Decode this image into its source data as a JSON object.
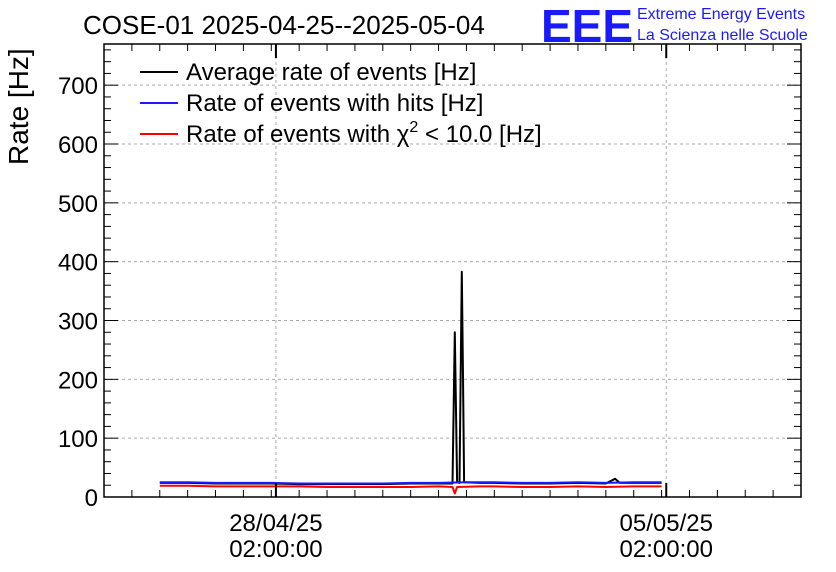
{
  "chart_data": {
    "type": "line",
    "title": "COSE-01 2025-04-25--2025-05-04",
    "ylabel": "Rate [Hz]",
    "xlabel": "",
    "ylim": [
      0,
      770
    ],
    "yticks": [
      "0",
      "100",
      "200",
      "300",
      "400",
      "500",
      "600",
      "700"
    ],
    "xlim": [
      "2025-04-25T00:00:00",
      "2025-05-07T12:00:00"
    ],
    "xticks": [
      {
        "x": "2025-04-28T02:00:00",
        "date": "28/04/25",
        "time": "02:00:00"
      },
      {
        "x": "2025-05-05T02:00:00",
        "date": "05/05/25",
        "time": "02:00:00"
      }
    ],
    "grid": true,
    "legend_position": "top-left",
    "series": [
      {
        "name": "Average rate of events [Hz]",
        "color": "#000000",
        "points": [
          [
            "2025-04-26T00:00:00",
            24
          ],
          [
            "2025-04-26T12:00:00",
            24
          ],
          [
            "2025-04-27T00:00:00",
            23
          ],
          [
            "2025-04-27T12:00:00",
            23
          ],
          [
            "2025-04-28T00:00:00",
            23
          ],
          [
            "2025-04-28T12:00:00",
            22
          ],
          [
            "2025-04-29T00:00:00",
            22
          ],
          [
            "2025-04-29T12:00:00",
            22
          ],
          [
            "2025-04-30T00:00:00",
            22
          ],
          [
            "2025-04-30T12:00:00",
            23
          ],
          [
            "2025-05-01T00:00:00",
            23
          ],
          [
            "2025-05-01T06:00:00",
            23
          ],
          [
            "2025-05-01T07:00:00",
            280
          ],
          [
            "2025-05-01T08:00:00",
            25
          ],
          [
            "2025-05-01T09:00:00",
            24
          ],
          [
            "2025-05-01T10:00:00",
            383
          ],
          [
            "2025-05-01T10:30:00",
            205
          ],
          [
            "2025-05-01T11:00:00",
            25
          ],
          [
            "2025-05-01T18:00:00",
            24
          ],
          [
            "2025-05-02T00:00:00",
            24
          ],
          [
            "2025-05-02T12:00:00",
            23
          ],
          [
            "2025-05-03T00:00:00",
            23
          ],
          [
            "2025-05-03T12:00:00",
            24
          ],
          [
            "2025-05-04T00:00:00",
            23
          ],
          [
            "2025-05-04T04:00:00",
            31
          ],
          [
            "2025-05-04T06:00:00",
            24
          ],
          [
            "2025-05-04T12:00:00",
            24
          ],
          [
            "2025-05-05T00:00:00",
            24
          ]
        ]
      },
      {
        "name": "Rate of events with hits [Hz]",
        "color": "#1a1aff",
        "points": [
          [
            "2025-04-26T00:00:00",
            25
          ],
          [
            "2025-04-26T12:00:00",
            25
          ],
          [
            "2025-04-27T00:00:00",
            24
          ],
          [
            "2025-04-27T12:00:00",
            24
          ],
          [
            "2025-04-28T00:00:00",
            24
          ],
          [
            "2025-04-28T12:00:00",
            23
          ],
          [
            "2025-04-29T00:00:00",
            23
          ],
          [
            "2025-04-29T12:00:00",
            23
          ],
          [
            "2025-04-30T00:00:00",
            23
          ],
          [
            "2025-04-30T12:00:00",
            24
          ],
          [
            "2025-05-01T00:00:00",
            24
          ],
          [
            "2025-05-01T12:00:00",
            25
          ],
          [
            "2025-05-02T00:00:00",
            25
          ],
          [
            "2025-05-02T12:00:00",
            24
          ],
          [
            "2025-05-03T00:00:00",
            24
          ],
          [
            "2025-05-03T12:00:00",
            25
          ],
          [
            "2025-05-04T00:00:00",
            24
          ],
          [
            "2025-05-04T12:00:00",
            25
          ],
          [
            "2025-05-05T00:00:00",
            25
          ]
        ]
      },
      {
        "name": "Rate of events with χ² < 10.0 [Hz]",
        "color": "#ff0000",
        "points": [
          [
            "2025-04-26T00:00:00",
            19
          ],
          [
            "2025-04-26T12:00:00",
            19
          ],
          [
            "2025-04-27T00:00:00",
            18
          ],
          [
            "2025-04-27T12:00:00",
            18
          ],
          [
            "2025-04-28T00:00:00",
            18
          ],
          [
            "2025-04-28T12:00:00",
            18
          ],
          [
            "2025-04-29T00:00:00",
            17
          ],
          [
            "2025-04-29T12:00:00",
            17
          ],
          [
            "2025-04-30T00:00:00",
            17
          ],
          [
            "2025-04-30T12:00:00",
            17
          ],
          [
            "2025-05-01T00:00:00",
            18
          ],
          [
            "2025-05-01T06:00:00",
            17
          ],
          [
            "2025-05-01T07:00:00",
            6
          ],
          [
            "2025-05-01T08:00:00",
            17
          ],
          [
            "2025-05-01T18:00:00",
            18
          ],
          [
            "2025-05-02T00:00:00",
            18
          ],
          [
            "2025-05-02T12:00:00",
            17
          ],
          [
            "2025-05-03T00:00:00",
            17
          ],
          [
            "2025-05-03T12:00:00",
            18
          ],
          [
            "2025-05-04T00:00:00",
            17
          ],
          [
            "2025-05-04T12:00:00",
            18
          ],
          [
            "2025-05-05T00:00:00",
            18
          ]
        ]
      }
    ]
  },
  "legend": {
    "items": [
      {
        "label": "Average rate of events [Hz]",
        "color": "#000000"
      },
      {
        "label": "Rate of events with hits [Hz]",
        "color": "#1a1aff"
      },
      {
        "label_prefix": "Rate of events with ",
        "symbol": "χ",
        "superscript": "2",
        "label_suffix": " < 10.0 [Hz]",
        "color": "#ff0000"
      }
    ]
  },
  "logo": {
    "mark": "EEE",
    "line1": "Extreme Energy Events",
    "line2": "La Scienza nelle Scuole"
  }
}
